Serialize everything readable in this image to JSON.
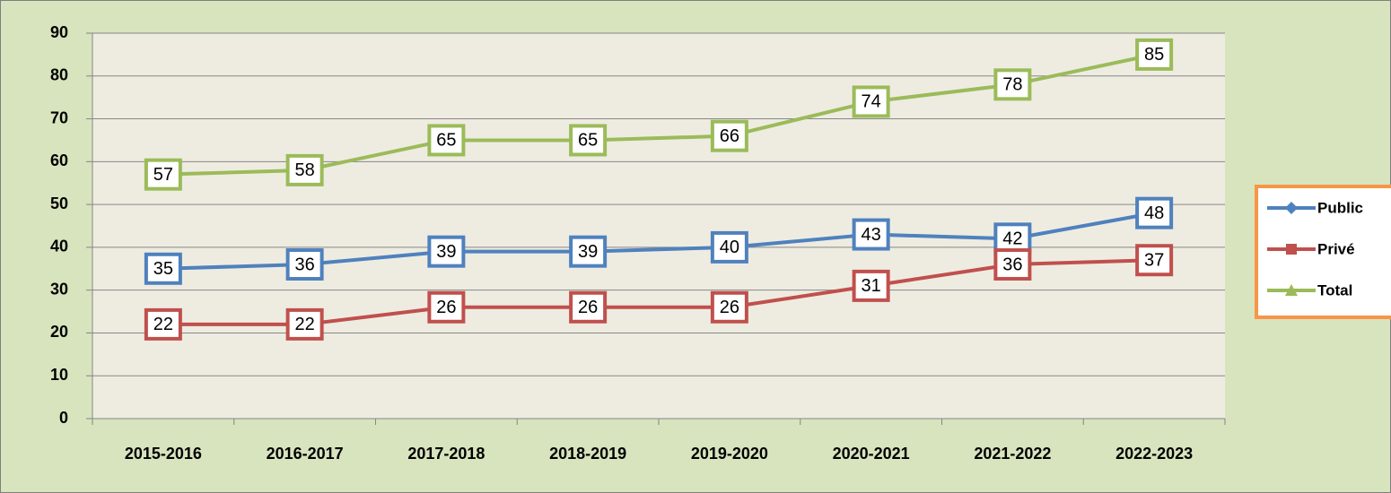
{
  "chart_data": {
    "type": "line",
    "categories": [
      "2015-2016",
      "2016-2017",
      "2017-2018",
      "2018-2019",
      "2019-2020",
      "2020-2021",
      "2021-2022",
      "2022-2023"
    ],
    "series": [
      {
        "name": "Public",
        "color": "#4f81bd",
        "marker": "diamond",
        "values": [
          35,
          36,
          39,
          39,
          40,
          43,
          42,
          48
        ]
      },
      {
        "name": "Privé",
        "color": "#c0504d",
        "marker": "square",
        "values": [
          22,
          22,
          26,
          26,
          26,
          31,
          36,
          37
        ]
      },
      {
        "name": "Total",
        "color": "#9bbb59",
        "marker": "triangle",
        "values": [
          57,
          58,
          65,
          65,
          66,
          74,
          78,
          85
        ]
      }
    ],
    "ylim": [
      0,
      90
    ],
    "yticks": [
      0,
      10,
      20,
      30,
      40,
      50,
      60,
      70,
      80,
      90
    ],
    "grid": true,
    "legend": "right",
    "data_labels": true
  }
}
